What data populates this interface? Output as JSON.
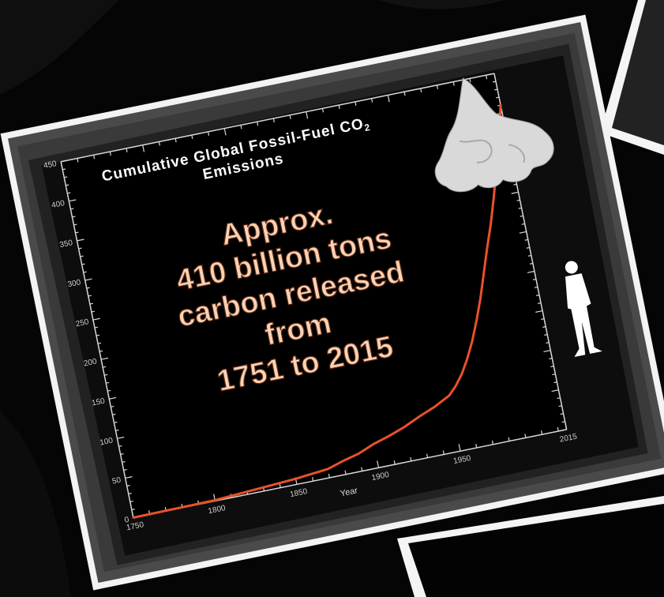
{
  "chart_data": {
    "type": "line",
    "title": "Cumulative Global Fossil-Fuel CO",
    "title_subscript": "2",
    "title_line2": "Emissions",
    "xlabel": "Year",
    "ylabel": "",
    "xlim": [
      1750,
      2015
    ],
    "ylim": [
      0,
      450
    ],
    "x_ticks": [
      1750,
      1800,
      1850,
      1900,
      1950,
      2015
    ],
    "y_ticks": [
      0,
      50,
      100,
      150,
      200,
      250,
      300,
      350,
      400,
      450
    ],
    "x_tick_labels": [
      "1750",
      "1800",
      "1850",
      "1900",
      "1950",
      "2015"
    ],
    "y_tick_labels": [
      "0",
      "50",
      "100",
      "150",
      "200",
      "250",
      "300",
      "350",
      "400",
      "450"
    ],
    "series": [
      {
        "x": [
          1750,
          1800,
          1850,
          1870,
          1880,
          1890,
          1900,
          1910,
          1920,
          1930,
          1940,
          1950,
          1955,
          1960,
          1965,
          1970,
          1975,
          1980,
          1985,
          1990,
          1995,
          2000,
          2005,
          2010,
          2015
        ],
        "y": [
          0,
          1,
          7,
          11,
          17,
          22,
          30,
          36,
          43,
          52,
          60,
          70,
          80,
          93,
          110,
          130,
          154,
          180,
          210,
          240,
          268,
          300,
          335,
          370,
          410
        ]
      }
    ],
    "line_color": "#e8522a",
    "grid": false,
    "annotation_lines": [
      "Approx.",
      "410 billion tons",
      "carbon released",
      "from",
      "1751 to 2015"
    ]
  }
}
